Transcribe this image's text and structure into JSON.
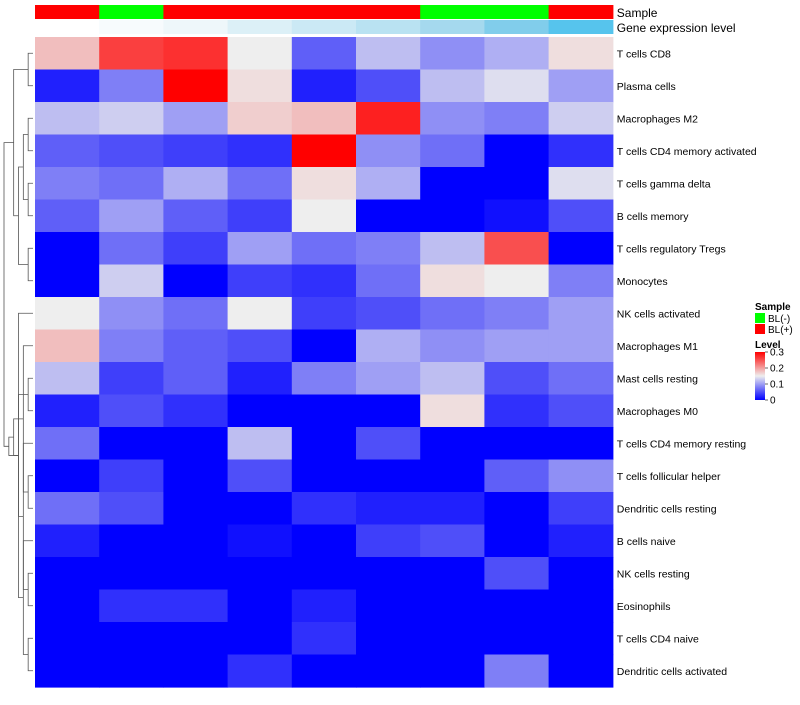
{
  "chart_data": {
    "type": "heatmap",
    "annotation_labels": [
      "Sample",
      "Gene expression level"
    ],
    "columns": [
      {
        "sample": "BL(+)",
        "expression_color": "#ffffff"
      },
      {
        "sample": "BL(-)",
        "expression_color": "#f7fbfd"
      },
      {
        "sample": "BL(+)",
        "expression_color": "#eef7fa"
      },
      {
        "sample": "BL(+)",
        "expression_color": "#dcf0f7"
      },
      {
        "sample": "BL(+)",
        "expression_color": "#cbe9f5"
      },
      {
        "sample": "BL(+)",
        "expression_color": "#b9e2f2"
      },
      {
        "sample": "BL(-)",
        "expression_color": "#a5d9ee"
      },
      {
        "sample": "BL(-)",
        "expression_color": "#81cdeb"
      },
      {
        "sample": "BL(+)",
        "expression_color": "#56c4ed"
      }
    ],
    "rows": [
      "T cells CD8",
      "Plasma cells",
      "Macrophages M2",
      "T cells CD4 memory activated",
      "T cells gamma delta",
      "B cells memory",
      "T cells regulatory  Tregs",
      "Monocytes",
      "NK cells activated",
      "Macrophages M1",
      "Mast cells resting",
      "Macrophages M0",
      "T cells CD4 memory resting",
      "T cells follicular helper",
      "Dendritic cells resting",
      "B cells naive",
      "NK cells resting",
      "Eosinophils",
      "T cells CD4 naive",
      "Dendritic cells activated"
    ],
    "values": [
      [
        0.18,
        0.26,
        0.27,
        0.15,
        0.06,
        0.12,
        0.09,
        0.11,
        0.16
      ],
      [
        0.02,
        0.08,
        0.3,
        0.16,
        0.02,
        0.05,
        0.12,
        0.14,
        0.1
      ],
      [
        0.12,
        0.13,
        0.1,
        0.17,
        0.18,
        0.28,
        0.09,
        0.08,
        0.13
      ],
      [
        0.06,
        0.05,
        0.04,
        0.03,
        0.3,
        0.09,
        0.07,
        0.0,
        0.03
      ],
      [
        0.08,
        0.07,
        0.11,
        0.07,
        0.16,
        0.11,
        0.0,
        0.0,
        0.14
      ],
      [
        0.06,
        0.1,
        0.06,
        0.04,
        0.15,
        0.0,
        0.0,
        0.01,
        0.05
      ],
      [
        0.0,
        0.07,
        0.04,
        0.1,
        0.07,
        0.08,
        0.12,
        0.25,
        0.0
      ],
      [
        0.0,
        0.13,
        0.0,
        0.04,
        0.03,
        0.07,
        0.16,
        0.15,
        0.08
      ],
      [
        0.15,
        0.09,
        0.07,
        0.15,
        0.04,
        0.05,
        0.07,
        0.08,
        0.1
      ],
      [
        0.18,
        0.08,
        0.06,
        0.05,
        0.0,
        0.11,
        0.09,
        0.1,
        0.1
      ],
      [
        0.12,
        0.04,
        0.06,
        0.02,
        0.08,
        0.1,
        0.12,
        0.05,
        0.07
      ],
      [
        0.02,
        0.05,
        0.03,
        0.0,
        0.0,
        0.0,
        0.16,
        0.03,
        0.05
      ],
      [
        0.07,
        0.0,
        0.0,
        0.12,
        0.0,
        0.05,
        0.0,
        0.0,
        0.0
      ],
      [
        0.0,
        0.04,
        0.0,
        0.05,
        0.0,
        0.0,
        0.0,
        0.06,
        0.09
      ],
      [
        0.07,
        0.05,
        0.0,
        0.0,
        0.03,
        0.02,
        0.02,
        0.0,
        0.04
      ],
      [
        0.02,
        0.0,
        0.0,
        0.01,
        0.0,
        0.04,
        0.05,
        0.0,
        0.02
      ],
      [
        0.0,
        0.0,
        0.0,
        0.0,
        0.0,
        0.0,
        0.0,
        0.05,
        0.0
      ],
      [
        0.0,
        0.03,
        0.03,
        0.0,
        0.02,
        0.0,
        0.0,
        0.0,
        0.0
      ],
      [
        0.0,
        0.0,
        0.0,
        0.0,
        0.03,
        0.0,
        0.0,
        0.0,
        0.0
      ],
      [
        0.0,
        0.0,
        0.0,
        0.03,
        0.0,
        0.0,
        0.0,
        0.08,
        0.0
      ]
    ],
    "color_scale": {
      "min": 0,
      "mid": 0.15,
      "max": 0.3,
      "low_color": "#0000ff",
      "mid_color": "#eeeeee",
      "high_color": "#ff0000"
    },
    "legend": {
      "sample_title": "Sample",
      "sample_entries": [
        {
          "label": "BL(-)",
          "color": "#00ff00"
        },
        {
          "label": "BL(+)",
          "color": "#ff0000"
        }
      ],
      "level_title": "Level",
      "level_ticks": [
        {
          "value": 0.3,
          "label": "0.3"
        },
        {
          "value": 0.2,
          "label": "0.2"
        },
        {
          "value": 0.1,
          "label": "0.1"
        },
        {
          "value": 0,
          "label": "0"
        }
      ],
      "placement": "right"
    },
    "row_dendrogram": [
      [
        2,
        3
      ],
      [
        4,
        5
      ],
      [
        6,
        7
      ],
      [
        18,
        19
      ],
      [
        16,
        17
      ],
      [
        20,
        21
      ],
      [
        13,
        14
      ],
      [
        23,
        15
      ],
      [
        12,
        24
      ],
      [
        10,
        11
      ],
      [
        9,
        26
      ],
      [
        8,
        27
      ],
      [
        22,
        25
      ],
      [
        1,
        0
      ],
      [
        29,
        28
      ],
      [
        30,
        31
      ],
      [
        32,
        33
      ],
      [
        34,
        35
      ],
      [
        36,
        37
      ]
    ]
  }
}
